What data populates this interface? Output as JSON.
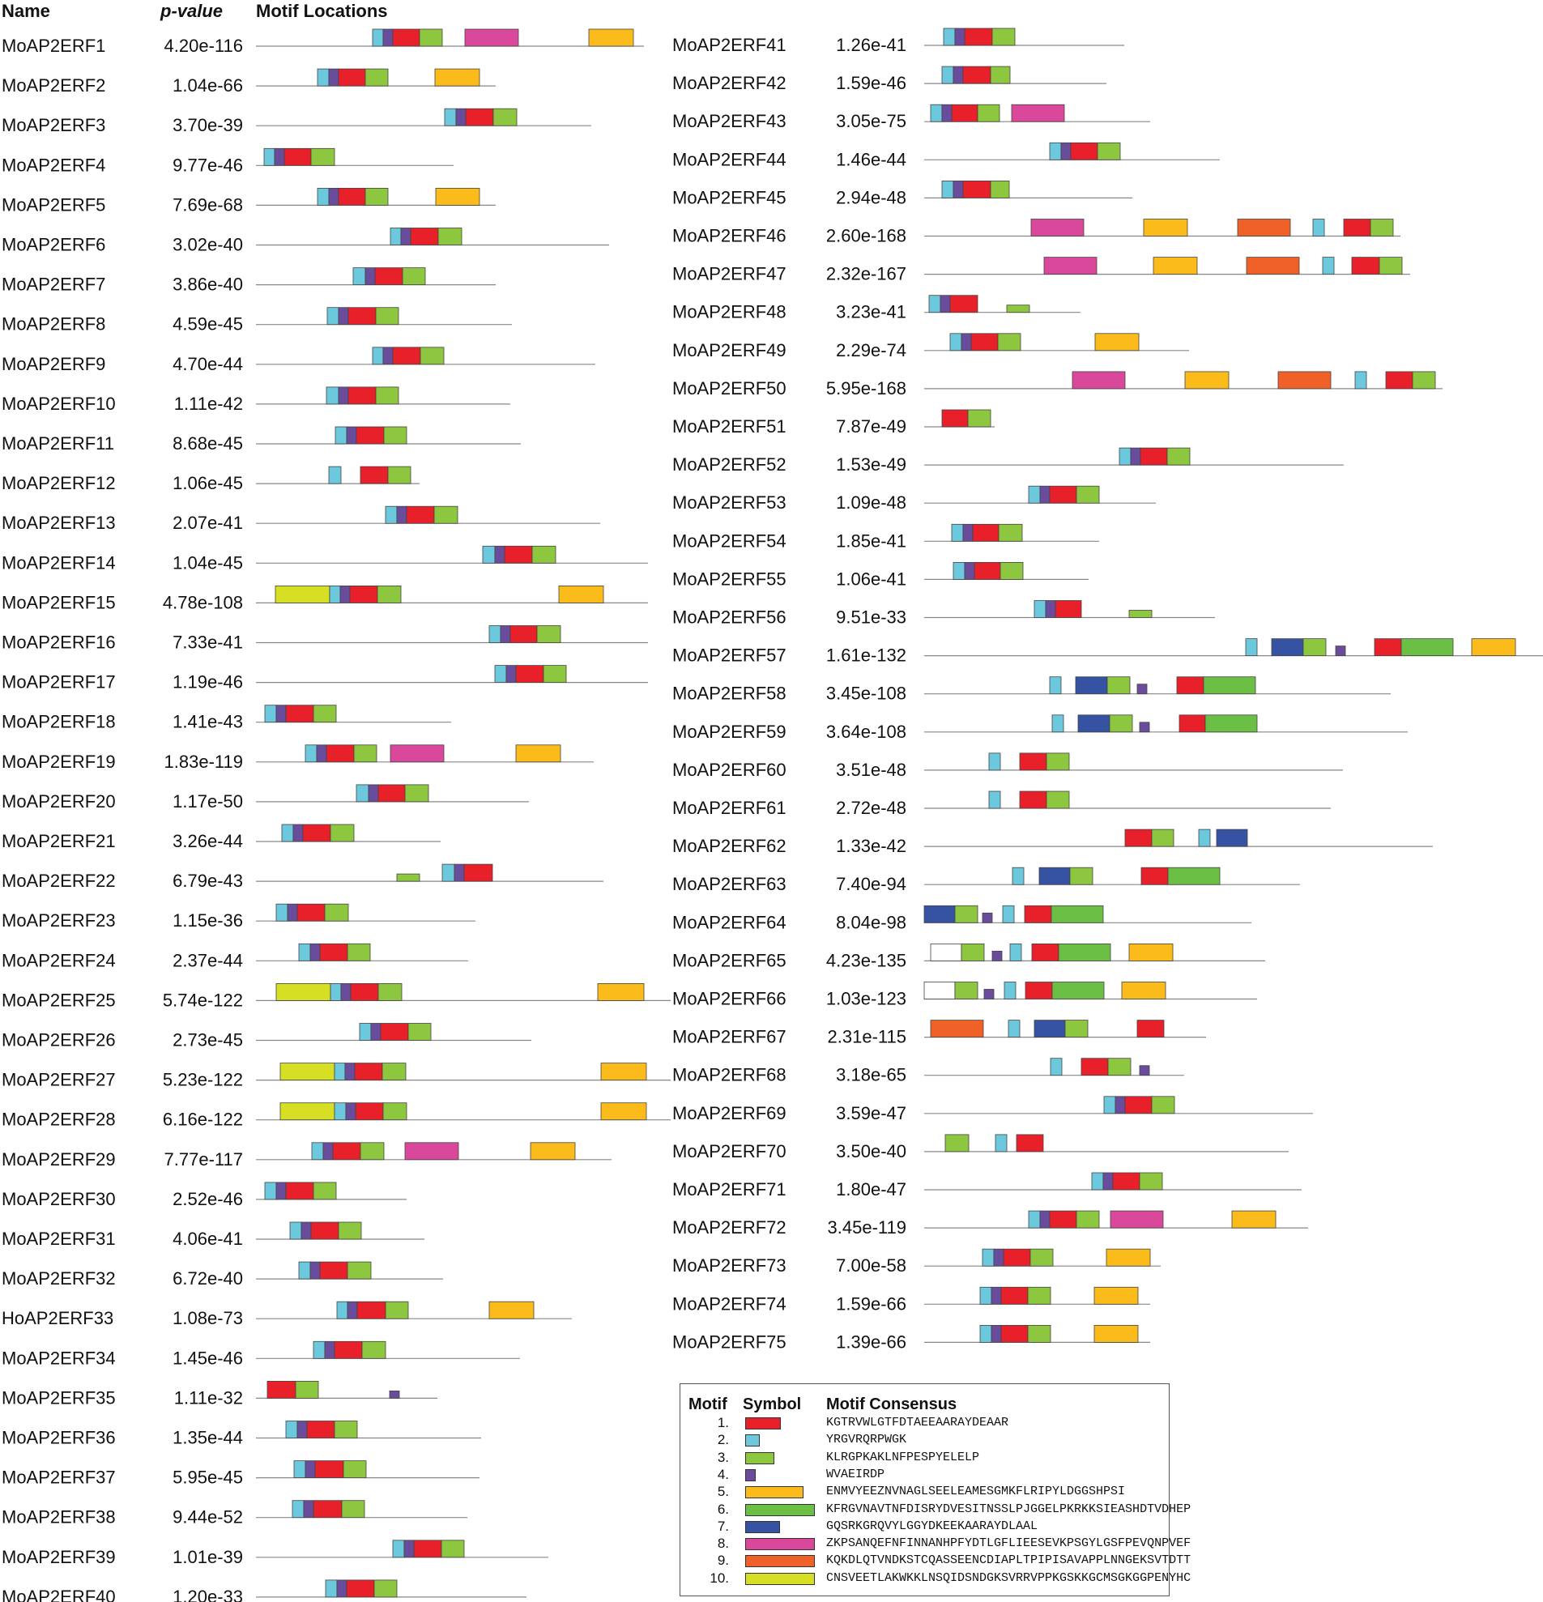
{
  "header": {
    "name_label": "Name",
    "pvalue_label": "p-value",
    "motifs_label": "Motif Locations"
  },
  "motif_colors": {
    "1": "#e8202a",
    "2": "#6cc8dd",
    "3": "#8dc63f",
    "4": "#6a4c9c",
    "5": "#fbbc1b",
    "6": "#6bbf44",
    "7": "#3552a3",
    "8": "#d9489a",
    "9": "#ef6127",
    "10": "#d6df23"
  },
  "genes": [
    {
      "name": "MoAP2ERF1",
      "p": "4.20e-116"
    },
    {
      "name": "MoAP2ERF2",
      "p": "1.04e-66"
    },
    {
      "name": "MoAP2ERF3",
      "p": "3.70e-39"
    },
    {
      "name": "MoAP2ERF4",
      "p": "9.77e-46"
    },
    {
      "name": "MoAP2ERF5",
      "p": "7.69e-68"
    },
    {
      "name": "MoAP2ERF6",
      "p": "3.02e-40"
    },
    {
      "name": "MoAP2ERF7",
      "p": "3.86e-40"
    },
    {
      "name": "MoAP2ERF8",
      "p": "4.59e-45"
    },
    {
      "name": "MoAP2ERF9",
      "p": "4.70e-44"
    },
    {
      "name": "MoAP2ERF10",
      "p": "1.11e-42"
    },
    {
      "name": "MoAP2ERF11",
      "p": "8.68e-45"
    },
    {
      "name": "MoAP2ERF12",
      "p": "1.06e-45"
    },
    {
      "name": "MoAP2ERF13",
      "p": "2.07e-41"
    },
    {
      "name": "MoAP2ERF14",
      "p": "1.04e-45"
    },
    {
      "name": "MoAP2ERF15",
      "p": "4.78e-108"
    },
    {
      "name": "MoAP2ERF16",
      "p": "7.33e-41"
    },
    {
      "name": "MoAP2ERF17",
      "p": "1.19e-46"
    },
    {
      "name": "MoAP2ERF18",
      "p": "1.41e-43"
    },
    {
      "name": "MoAP2ERF19",
      "p": "1.83e-119"
    },
    {
      "name": "MoAP2ERF20",
      "p": "1.17e-50"
    },
    {
      "name": "MoAP2ERF21",
      "p": "3.26e-44"
    },
    {
      "name": "MoAP2ERF22",
      "p": "6.79e-43"
    },
    {
      "name": "MoAP2ERF23",
      "p": "1.15e-36"
    },
    {
      "name": "MoAP2ERF24",
      "p": "2.37e-44"
    },
    {
      "name": "MoAP2ERF25",
      "p": "5.74e-122"
    },
    {
      "name": "MoAP2ERF26",
      "p": "2.73e-45"
    },
    {
      "name": "MoAP2ERF27",
      "p": "5.23e-122"
    },
    {
      "name": "MoAP2ERF28",
      "p": "6.16e-122"
    },
    {
      "name": "MoAP2ERF29",
      "p": "7.77e-117"
    },
    {
      "name": "MoAP2ERF30",
      "p": "2.52e-46"
    },
    {
      "name": "MoAP2ERF31",
      "p": "4.06e-41"
    },
    {
      "name": "MoAP2ERF32",
      "p": "6.72e-40"
    },
    {
      "name": "HoAP2ERF33",
      "p": "1.08e-73"
    },
    {
      "name": "MoAP2ERF34",
      "p": "1.45e-46"
    },
    {
      "name": "MoAP2ERF35",
      "p": "1.11e-32"
    },
    {
      "name": "MoAP2ERF36",
      "p": "1.35e-44"
    },
    {
      "name": "MoAP2ERF37",
      "p": "5.95e-45"
    },
    {
      "name": "MoAP2ERF38",
      "p": "9.44e-52"
    },
    {
      "name": "MoAP2ERF39",
      "p": "1.01e-39"
    },
    {
      "name": "MoAP2ERF40",
      "p": "1.20e-33"
    },
    {
      "name": "MoAP2ERF41",
      "p": "1.26e-41"
    },
    {
      "name": "MoAP2ERF42",
      "p": "1.59e-46"
    },
    {
      "name": "MoAP2ERF43",
      "p": "3.05e-75"
    },
    {
      "name": "MoAP2ERF44",
      "p": "1.46e-44"
    },
    {
      "name": "MoAP2ERF45",
      "p": "2.94e-48"
    },
    {
      "name": "MoAP2ERF46",
      "p": "2.60e-168"
    },
    {
      "name": "MoAP2ERF47",
      "p": "2.32e-167"
    },
    {
      "name": "MoAP2ERF48",
      "p": "3.23e-41"
    },
    {
      "name": "MoAP2ERF49",
      "p": "2.29e-74"
    },
    {
      "name": "MoAP2ERF50",
      "p": "5.95e-168"
    },
    {
      "name": "MoAP2ERF51",
      "p": "7.87e-49"
    },
    {
      "name": "MoAP2ERF52",
      "p": "1.53e-49"
    },
    {
      "name": "MoAP2ERF53",
      "p": "1.09e-48"
    },
    {
      "name": "MoAP2ERF54",
      "p": "1.85e-41"
    },
    {
      "name": "MoAP2ERF55",
      "p": "1.06e-41"
    },
    {
      "name": "MoAP2ERF56",
      "p": "9.51e-33"
    },
    {
      "name": "MoAP2ERF57",
      "p": "1.61e-132"
    },
    {
      "name": "MoAP2ERF58",
      "p": "3.45e-108"
    },
    {
      "name": "MoAP2ERF59",
      "p": "3.64e-108"
    },
    {
      "name": "MoAP2ERF60",
      "p": "3.51e-48"
    },
    {
      "name": "MoAP2ERF61",
      "p": "2.72e-48"
    },
    {
      "name": "MoAP2ERF62",
      "p": "1.33e-42"
    },
    {
      "name": "MoAP2ERF63",
      "p": "7.40e-94"
    },
    {
      "name": "MoAP2ERF64",
      "p": "8.04e-98"
    },
    {
      "name": "MoAP2ERF65",
      "p": "4.23e-135"
    },
    {
      "name": "MoAP2ERF66",
      "p": "1.03e-123"
    },
    {
      "name": "MoAP2ERF67",
      "p": "2.31e-115"
    },
    {
      "name": "MoAP2ERF68",
      "p": "3.18e-65"
    },
    {
      "name": "MoAP2ERF69",
      "p": "3.59e-47"
    },
    {
      "name": "MoAP2ERF70",
      "p": "3.50e-40"
    },
    {
      "name": "MoAP2ERF71",
      "p": "1.80e-47"
    },
    {
      "name": "MoAP2ERF72",
      "p": "3.45e-119"
    },
    {
      "name": "MoAP2ERF73",
      "p": "7.00e-58"
    },
    {
      "name": "MoAP2ERF74",
      "p": "1.59e-66"
    },
    {
      "name": "MoAP2ERF75",
      "p": "1.39e-66"
    }
  ],
  "legend": {
    "col_motif": "Motif",
    "col_symbol": "Symbol",
    "col_consensus": "Motif Consensus",
    "rows": [
      {
        "num": "1.",
        "motif": "1",
        "consensus": "KGTRVWLGTFDTAEEAARAYDEAAR"
      },
      {
        "num": "2.",
        "motif": "2",
        "consensus": "YRGVRQRPWGK"
      },
      {
        "num": "3.",
        "motif": "3",
        "consensus": "KLRGPKAKLNFPESPYELELP"
      },
      {
        "num": "4.",
        "motif": "4",
        "consensus": "WVAEIRDP"
      },
      {
        "num": "5.",
        "motif": "5",
        "consensus": "ENMVYEEZNVNAGLSEELEAMESGMKFLRIPYLDGGSHPSI"
      },
      {
        "num": "6.",
        "motif": "6",
        "consensus": "KFRGVNAVTNFDISRYDVESITNSSLPJGGELPKRKKSIEASHDTVDHEP"
      },
      {
        "num": "7.",
        "motif": "7",
        "consensus": "GQSRKGRQVYLGGYDKEEKAARAYDLAAL"
      },
      {
        "num": "8.",
        "motif": "8",
        "consensus": "ZKPSANQEFNFINNANHPFYDTLGFLIEESEVKPSGYLGSFPEVQNPVEF"
      },
      {
        "num": "9.",
        "motif": "9",
        "consensus": "KQKDLQTVNDKSTCQASSEENCDIAPLTPIPISAVAPPLNNGEKSVTDTT"
      },
      {
        "num": "10.",
        "motif": "10",
        "consensus": "CNSVEETLAKWKKLNSQIDSNDGKSVRRVPPKGSKKGCMSGKGGPENYHC"
      }
    ]
  }
}
